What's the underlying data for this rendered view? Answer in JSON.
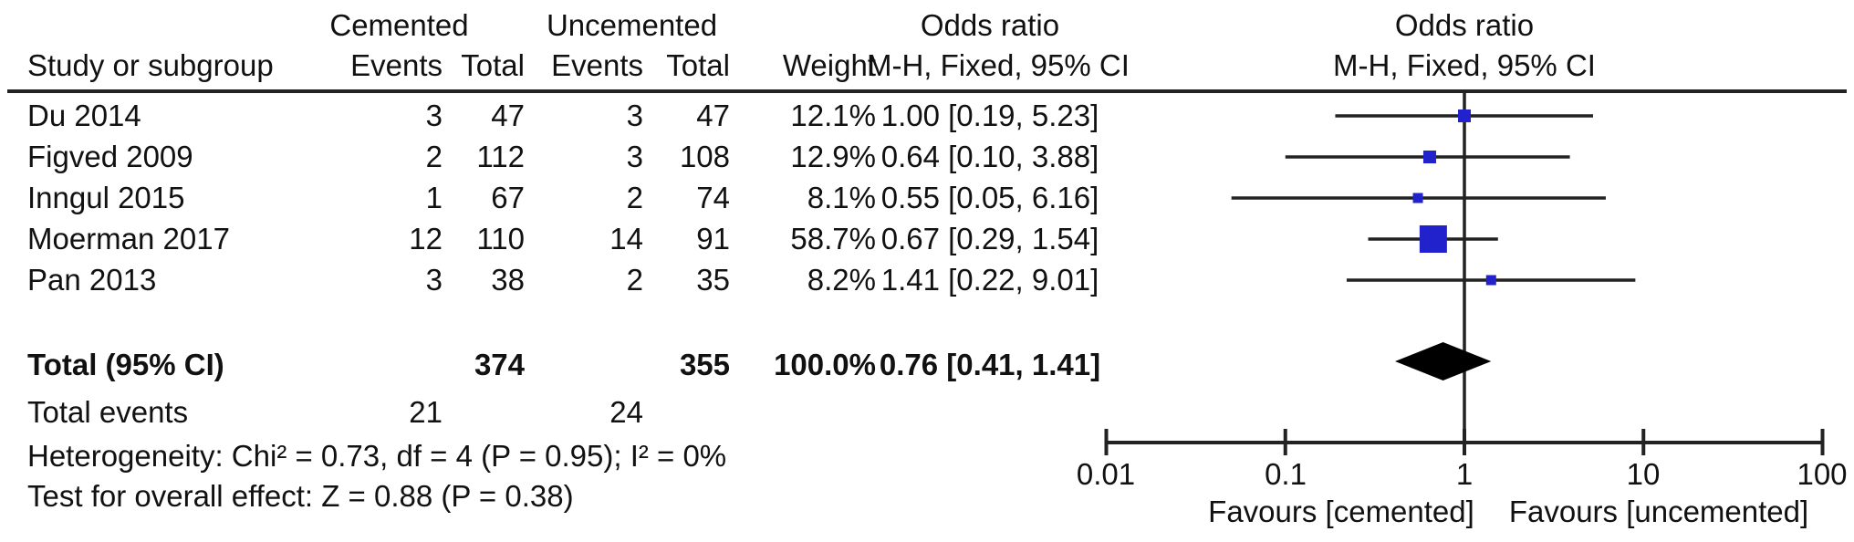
{
  "header": {
    "study": "Study or subgroup",
    "group1": "Cemented",
    "group2": "Uncemented",
    "events": "Events",
    "total": "Total",
    "weight": "Weight",
    "or_title": "Odds ratio",
    "or_sub": "M-H, Fixed, 95% CI"
  },
  "rows": [
    {
      "study": "Du 2014",
      "e1": "3",
      "t1": "47",
      "e2": "3",
      "t2": "47",
      "weight": "12.1%",
      "ci": "1.00 [0.19, 5.23]"
    },
    {
      "study": "Figved 2009",
      "e1": "2",
      "t1": "112",
      "e2": "3",
      "t2": "108",
      "weight": "12.9%",
      "ci": "0.64 [0.10, 3.88]"
    },
    {
      "study": "Inngul 2015",
      "e1": "1",
      "t1": "67",
      "e2": "2",
      "t2": "74",
      "weight": "8.1%",
      "ci": "0.55 [0.05, 6.16]"
    },
    {
      "study": "Moerman 2017",
      "e1": "12",
      "t1": "110",
      "e2": "14",
      "t2": "91",
      "weight": "58.7%",
      "ci": "0.67 [0.29, 1.54]"
    },
    {
      "study": "Pan 2013",
      "e1": "3",
      "t1": "38",
      "e2": "2",
      "t2": "35",
      "weight": "8.2%",
      "ci": "1.41 [0.22, 9.01]"
    }
  ],
  "totals": {
    "label": "Total (95% CI)",
    "t1": "374",
    "t2": "355",
    "weight": "100.0%",
    "ci": "0.76 [0.41, 1.41]",
    "events_label": "Total events",
    "e1": "21",
    "e2": "24"
  },
  "stats": {
    "heterogeneity": "Heterogeneity: Chi² = 0.73, df = 4 (P = 0.95); I² = 0%",
    "overall_effect": "Test for overall effect: Z = 0.88 (P = 0.38)"
  },
  "colors": {
    "marker_blue": "#2222cc",
    "line_dark": "#222222",
    "diamond_black": "#000000"
  },
  "chart_data": {
    "type": "forest",
    "effect_measure": "Odds ratio, M-H, Fixed, 95% CI",
    "x_scale": "log10",
    "xlim": [
      0.01,
      100
    ],
    "x_ticks": [
      0.01,
      0.1,
      1,
      10,
      100
    ],
    "x_tick_labels": [
      "0.01",
      "0.1",
      "1",
      "10",
      "100"
    ],
    "null_line": 1,
    "series": [
      {
        "name": "Du 2014",
        "or": 1.0,
        "lo": 0.19,
        "hi": 5.23,
        "weight_pct": 12.1
      },
      {
        "name": "Figved 2009",
        "or": 0.64,
        "lo": 0.1,
        "hi": 3.88,
        "weight_pct": 12.9
      },
      {
        "name": "Inngul 2015",
        "or": 0.55,
        "lo": 0.05,
        "hi": 6.16,
        "weight_pct": 8.1
      },
      {
        "name": "Moerman 2017",
        "or": 0.67,
        "lo": 0.29,
        "hi": 1.54,
        "weight_pct": 58.7
      },
      {
        "name": "Pan 2013",
        "or": 1.41,
        "lo": 0.22,
        "hi": 9.01,
        "weight_pct": 8.2
      }
    ],
    "total": {
      "or": 0.76,
      "lo": 0.41,
      "hi": 1.41
    },
    "favours_left": "Favours [cemented]",
    "favours_right": "Favours [uncemented]"
  }
}
